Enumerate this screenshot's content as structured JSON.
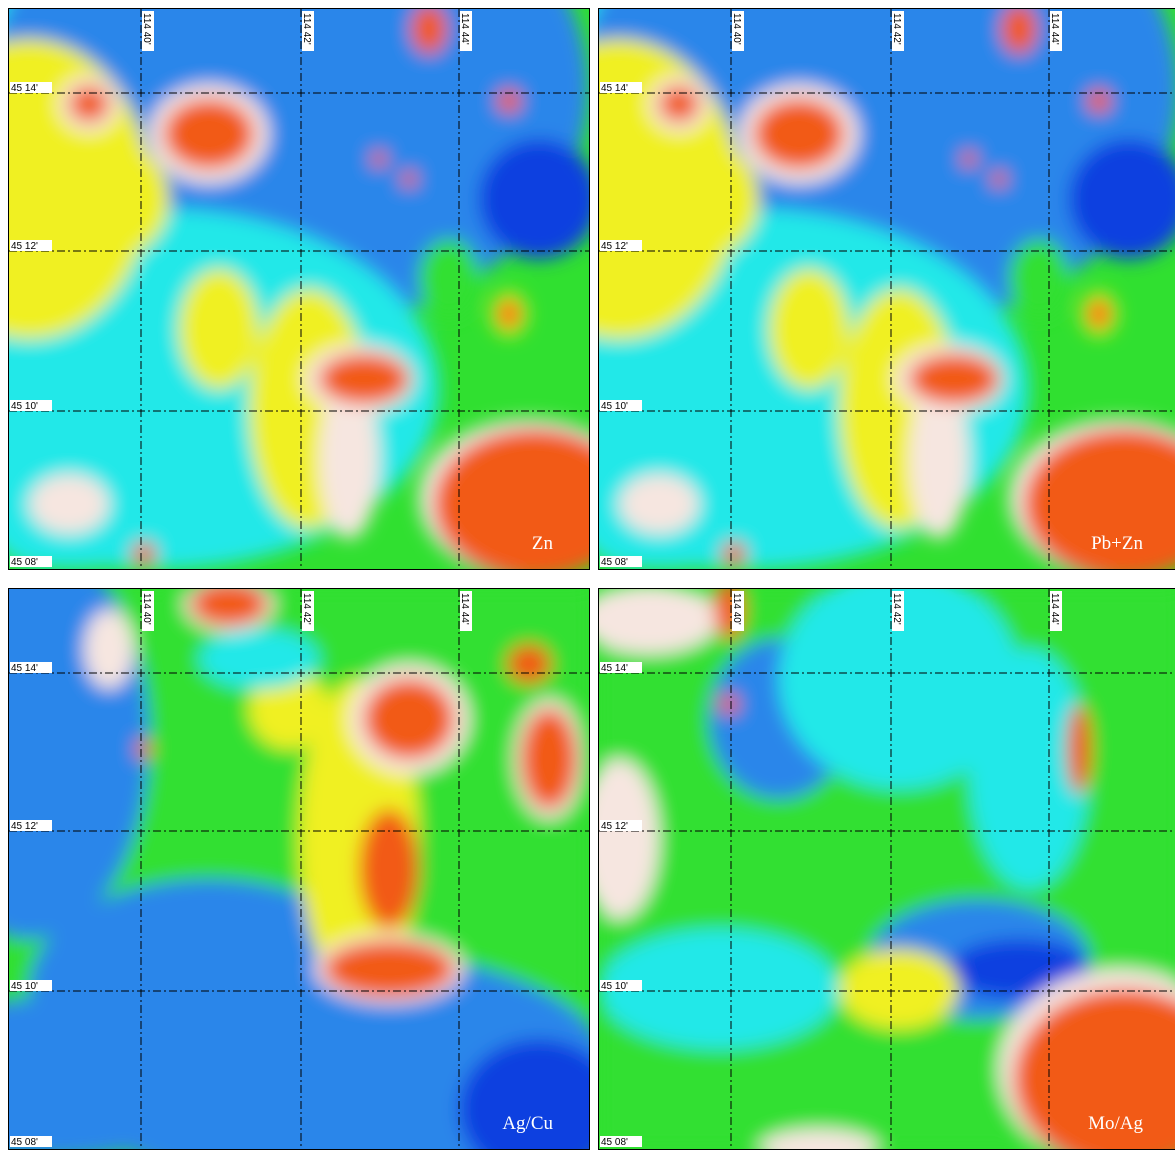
{
  "panels": [
    {
      "label": "Zn"
    },
    {
      "label": "Pb+Zn"
    },
    {
      "label": "Ag/Cu"
    },
    {
      "label": "Mo/Ag"
    }
  ],
  "longitude_labels": [
    "114 40'",
    "114 42'",
    "114 44'"
  ],
  "latitude_labels": [
    "45 14'",
    "45 12'",
    "45 10'",
    "45 08'"
  ]
}
